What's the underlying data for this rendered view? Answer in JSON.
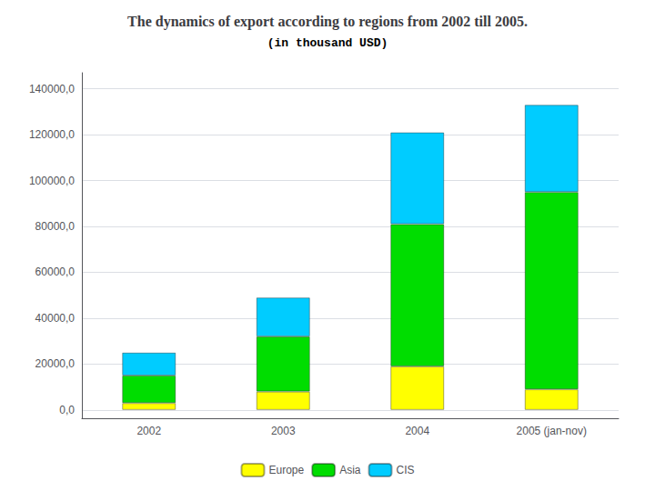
{
  "chart_data": {
    "type": "bar",
    "title": "The dynamics of export according to regions from 2002 till 2005.",
    "subtitle": "(in thousand USD)",
    "categories": [
      "2002",
      "2003",
      "2004",
      "2005 (jan-nov)"
    ],
    "series": [
      {
        "name": "Europe",
        "color": "#ffff00",
        "values": [
          3000,
          8000,
          19000,
          9000
        ]
      },
      {
        "name": "Asia",
        "color": "#00dd00",
        "values": [
          12000,
          24000,
          62000,
          86000
        ]
      },
      {
        "name": "CIS",
        "color": "#00ccff",
        "values": [
          10000,
          17000,
          40000,
          38000
        ]
      }
    ],
    "stacked": true,
    "ylim": [
      -3630,
      147000
    ],
    "yticks": [
      {
        "value": 0,
        "label": "0,0"
      },
      {
        "value": 20000,
        "label": "20000,0"
      },
      {
        "value": 40000,
        "label": "40000,0"
      },
      {
        "value": 60000,
        "label": "60000,0"
      },
      {
        "value": 80000,
        "label": "80000,0"
      },
      {
        "value": 100000,
        "label": "100000,0"
      },
      {
        "value": 120000,
        "label": "120000,0"
      },
      {
        "value": 140000,
        "label": "140000,0"
      }
    ],
    "grid": true,
    "legend": "bottom"
  }
}
